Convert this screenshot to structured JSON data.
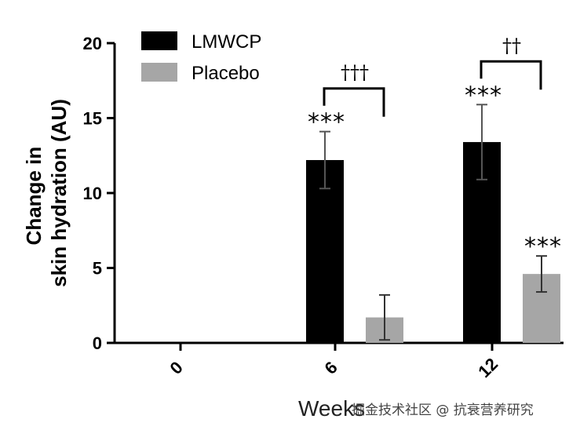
{
  "chart_data": {
    "type": "bar",
    "categories": [
      "0",
      "6",
      "12"
    ],
    "series": [
      {
        "name": "LMWCP",
        "color": "#000000",
        "values": [
          0,
          12.2,
          13.4
        ],
        "errors": [
          0,
          1.9,
          2.5
        ]
      },
      {
        "name": "Placebo",
        "color": "#a6a6a6",
        "values": [
          0,
          1.7,
          4.6
        ],
        "errors": [
          0,
          1.5,
          1.2
        ]
      }
    ],
    "ylabel_lines": [
      "Change in",
      "skin hydration (AU)"
    ],
    "xlabel": "Weeks",
    "ylim": [
      0,
      20
    ],
    "yticks": [
      0,
      5,
      10,
      15,
      20
    ],
    "grid": false,
    "legend_position": "top-left",
    "annotations": {
      "stars": [
        {
          "category": "6",
          "series": "LMWCP",
          "text": "***"
        },
        {
          "category": "12",
          "series": "LMWCP",
          "text": "***"
        },
        {
          "category": "12",
          "series": "Placebo",
          "text": "***"
        }
      ],
      "brackets": [
        {
          "category": "6",
          "text": "†††"
        },
        {
          "category": "12",
          "text": "††"
        }
      ]
    }
  },
  "watermark": "掘金技术社区 @ 抗衰营养研究"
}
